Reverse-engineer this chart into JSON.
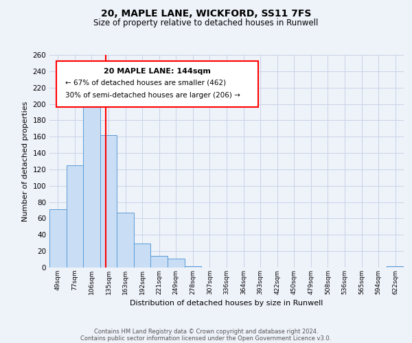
{
  "title1": "20, MAPLE LANE, WICKFORD, SS11 7FS",
  "title2": "Size of property relative to detached houses in Runwell",
  "xlabel": "Distribution of detached houses by size in Runwell",
  "ylabel": "Number of detached properties",
  "bar_labels": [
    "49sqm",
    "77sqm",
    "106sqm",
    "135sqm",
    "163sqm",
    "192sqm",
    "221sqm",
    "249sqm",
    "278sqm",
    "307sqm",
    "336sqm",
    "364sqm",
    "393sqm",
    "422sqm",
    "450sqm",
    "479sqm",
    "508sqm",
    "536sqm",
    "565sqm",
    "594sqm",
    "622sqm"
  ],
  "bar_heights": [
    71,
    125,
    203,
    162,
    67,
    29,
    14,
    11,
    2,
    0,
    0,
    0,
    0,
    0,
    0,
    0,
    0,
    0,
    0,
    0,
    2
  ],
  "bar_color": "#c9ddf5",
  "bar_edge_color": "#5b9bd5",
  "ylim": [
    0,
    260
  ],
  "yticks": [
    0,
    20,
    40,
    60,
    80,
    100,
    120,
    140,
    160,
    180,
    200,
    220,
    240,
    260
  ],
  "red_line_x": 3.32,
  "annotation_title": "20 MAPLE LANE: 144sqm",
  "annotation_line1": "← 67% of detached houses are smaller (462)",
  "annotation_line2": "30% of semi-detached houses are larger (206) →",
  "footer1": "Contains HM Land Registry data © Crown copyright and database right 2024.",
  "footer2": "Contains public sector information licensed under the Open Government Licence v3.0.",
  "bg_color": "#eef2f9",
  "plot_bg_color": "#eef2f9",
  "grid_color": "#c8d4e8"
}
